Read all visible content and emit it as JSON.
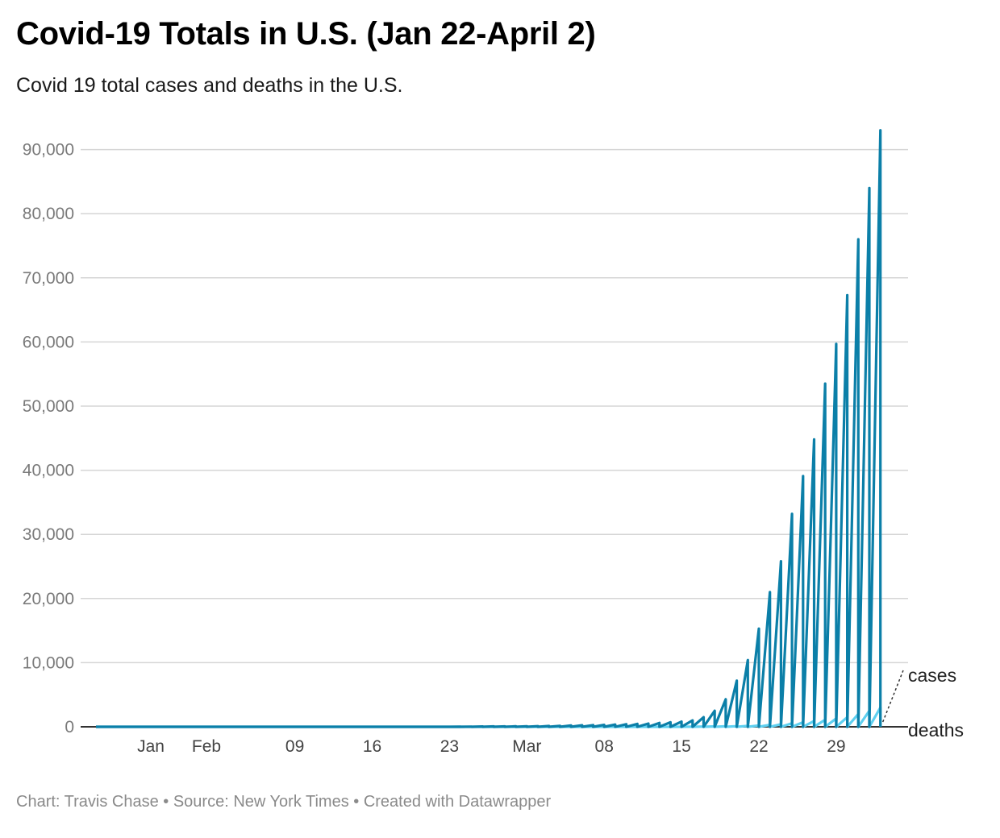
{
  "title": "Covid-19 Totals in U.S. (Jan 22-April 2)",
  "subtitle": "Covid 19 total cases and deaths in the U.S.",
  "footer": "Chart: Travis Chase • Source: New York Times • Created with Datawrapper",
  "colors": {
    "cases": "#0b7fa8",
    "deaths": "#5fd0f0",
    "grid": "#d5d5d5",
    "baseline": "#333333"
  },
  "chart_data": {
    "type": "line",
    "title": "Covid-19 Totals in U.S. (Jan 22-April 2)",
    "subtitle": "Covid 19 total cases and deaths in the U.S.",
    "ylim": [
      0,
      93000
    ],
    "y_ticks": [
      {
        "value": 0,
        "label": "0"
      },
      {
        "value": 10000,
        "label": "10,000"
      },
      {
        "value": 20000,
        "label": "20,000"
      },
      {
        "value": 30000,
        "label": "30,000"
      },
      {
        "value": 40000,
        "label": "40,000"
      },
      {
        "value": 50000,
        "label": "50,000"
      },
      {
        "value": 60000,
        "label": "60,000"
      },
      {
        "value": 70000,
        "label": "70,000"
      },
      {
        "value": 80000,
        "label": "80,000"
      },
      {
        "value": 90000,
        "label": "90,000"
      }
    ],
    "x_ticks": [
      {
        "date": "2020-01-22",
        "label": "Jan"
      },
      {
        "date": "2020-02-01",
        "label": "Feb"
      },
      {
        "date": "2020-02-09",
        "label": "09"
      },
      {
        "date": "2020-02-16",
        "label": "16"
      },
      {
        "date": "2020-02-23",
        "label": "23"
      },
      {
        "date": "2020-03-01",
        "label": "Mar"
      },
      {
        "date": "2020-03-08",
        "label": "08"
      },
      {
        "date": "2020-03-15",
        "label": "15"
      },
      {
        "date": "2020-03-22",
        "label": "22"
      },
      {
        "date": "2020-03-29",
        "label": "29"
      }
    ],
    "grid": true,
    "series": [
      {
        "name": "cases",
        "points": [
          {
            "x": "2020-01-22",
            "y": 0
          },
          {
            "x": "2020-02-23",
            "y": 0
          },
          {
            "x": "2020-02-27",
            "y": 60
          },
          {
            "x": "2020-03-01",
            "y": 80
          },
          {
            "x": "2020-03-04",
            "y": 150
          },
          {
            "x": "2020-03-06",
            "y": 240
          },
          {
            "x": "2020-03-08",
            "y": 300
          },
          {
            "x": "2020-03-10",
            "y": 400
          },
          {
            "x": "2020-03-12",
            "y": 500
          },
          {
            "x": "2020-03-14",
            "y": 700
          },
          {
            "x": "2020-03-15",
            "y": 800
          },
          {
            "x": "2020-03-16",
            "y": 1000
          },
          {
            "x": "2020-03-17",
            "y": 1500
          },
          {
            "x": "2020-03-18",
            "y": 2500
          },
          {
            "x": "2020-03-19",
            "y": 4300
          },
          {
            "x": "2020-03-20",
            "y": 7200
          },
          {
            "x": "2020-03-21",
            "y": 10400
          },
          {
            "x": "2020-03-22",
            "y": 15300
          },
          {
            "x": "2020-03-23",
            "y": 21000
          },
          {
            "x": "2020-03-24",
            "y": 25800
          },
          {
            "x": "2020-03-25",
            "y": 33200
          },
          {
            "x": "2020-03-26",
            "y": 39100
          },
          {
            "x": "2020-03-27",
            "y": 44800
          },
          {
            "x": "2020-03-28",
            "y": 53500
          },
          {
            "x": "2020-03-29",
            "y": 59700
          },
          {
            "x": "2020-03-30",
            "y": 67300
          },
          {
            "x": "2020-03-31",
            "y": 76000
          },
          {
            "x": "2020-04-01",
            "y": 84000
          },
          {
            "x": "2020-04-02",
            "y": 93000
          }
        ]
      },
      {
        "name": "deaths",
        "points": [
          {
            "x": "2020-01-22",
            "y": 0
          },
          {
            "x": "2020-03-15",
            "y": 0
          },
          {
            "x": "2020-03-20",
            "y": 100
          },
          {
            "x": "2020-03-22",
            "y": 200
          },
          {
            "x": "2020-03-24",
            "y": 400
          },
          {
            "x": "2020-03-26",
            "y": 700
          },
          {
            "x": "2020-03-28",
            "y": 1100
          },
          {
            "x": "2020-03-30",
            "y": 1500
          },
          {
            "x": "2020-03-31",
            "y": 2000
          },
          {
            "x": "2020-04-01",
            "y": 2500
          },
          {
            "x": "2020-04-02",
            "y": 3000
          }
        ]
      }
    ]
  }
}
